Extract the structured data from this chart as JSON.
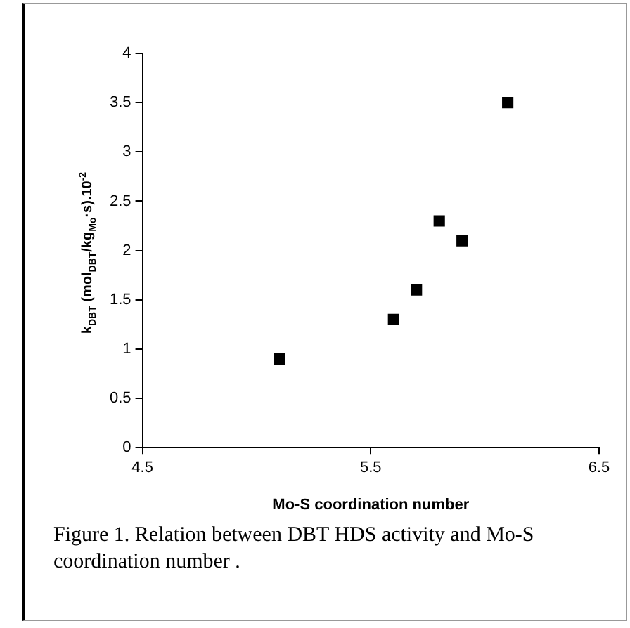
{
  "chart_data": {
    "type": "scatter",
    "xlabel": "Mo-S coordination number",
    "ylabel": "k$_{DBT}$ (mol$_{DBT}$/kg$_{Mo}$·s).10$^{-2}$",
    "x": [
      5.1,
      5.6,
      5.7,
      5.8,
      5.9,
      6.1
    ],
    "values": [
      0.9,
      1.3,
      1.6,
      2.3,
      2.1,
      3.5
    ],
    "color": "#000000",
    "marker": "square",
    "xlim": [
      4.5,
      6.5
    ],
    "xticks": [
      4.5,
      5.5,
      6.5
    ],
    "ylim": [
      0,
      4
    ],
    "yticks": [
      0,
      0.5,
      1,
      1.5,
      2,
      2.5,
      3,
      3.5,
      4
    ],
    "grid": false,
    "legend": false,
    "annotations": [
      "Figure 1. Relation between DBT HDS activity and Mo-S coordination number ."
    ]
  }
}
